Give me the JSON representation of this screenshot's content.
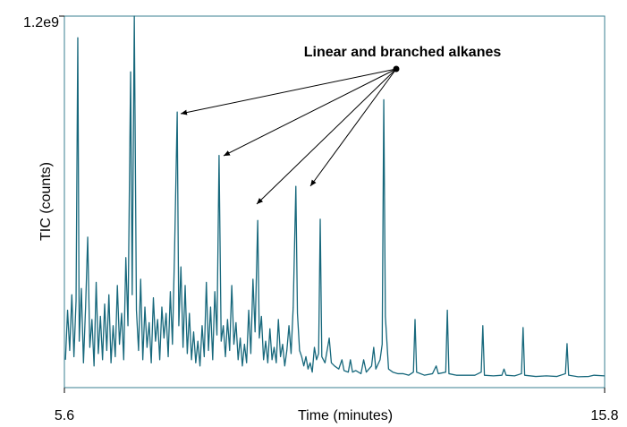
{
  "chart_data": {
    "type": "line",
    "xlabel": "Time (minutes)",
    "ylabel": "TIC (counts)",
    "annotation": "Linear and branched alkanes",
    "xlim": [
      5.6,
      15.8
    ],
    "xticks": [
      5.6,
      15.8
    ],
    "ylim": [
      0,
      1200000000.0
    ],
    "yticks": [
      {
        "value": 1200000000.0,
        "label": "1.2e9"
      }
    ],
    "color": "#17687c",
    "x": [
      5.62,
      5.66,
      5.7,
      5.74,
      5.78,
      5.82,
      5.853,
      5.88,
      5.92,
      5.96,
      6.0,
      6.04,
      6.08,
      6.12,
      6.16,
      6.2,
      6.24,
      6.28,
      6.32,
      6.36,
      6.4,
      6.44,
      6.48,
      6.52,
      6.56,
      6.6,
      6.64,
      6.68,
      6.72,
      6.76,
      6.8,
      6.85,
      6.88,
      6.92,
      6.96,
      7.0,
      7.04,
      7.08,
      7.12,
      7.16,
      7.2,
      7.24,
      7.28,
      7.32,
      7.36,
      7.4,
      7.44,
      7.48,
      7.52,
      7.56,
      7.6,
      7.64,
      7.68,
      7.73,
      7.76,
      7.8,
      7.84,
      7.88,
      7.92,
      7.96,
      8.0,
      8.04,
      8.08,
      8.12,
      8.16,
      8.2,
      8.24,
      8.28,
      8.32,
      8.36,
      8.4,
      8.44,
      8.48,
      8.52,
      8.56,
      8.6,
      8.64,
      8.68,
      8.72,
      8.76,
      8.8,
      8.84,
      8.88,
      8.92,
      8.96,
      9.0,
      9.04,
      9.08,
      9.12,
      9.16,
      9.2,
      9.25,
      9.28,
      9.32,
      9.36,
      9.4,
      9.44,
      9.48,
      9.52,
      9.56,
      9.6,
      9.64,
      9.68,
      9.72,
      9.76,
      9.8,
      9.84,
      9.88,
      9.92,
      9.97,
      10.0,
      10.04,
      10.08,
      10.12,
      10.16,
      10.2,
      10.24,
      10.28,
      10.32,
      10.36,
      10.4,
      10.43,
      10.46,
      10.52,
      10.6,
      10.64,
      10.7,
      10.78,
      10.84,
      10.88,
      10.96,
      11.0,
      11.04,
      11.1,
      11.2,
      11.25,
      11.3,
      11.4,
      11.44,
      11.48,
      11.56,
      11.6,
      11.63,
      11.66,
      11.72,
      11.8,
      11.9,
      12.0,
      12.1,
      12.19,
      12.22,
      12.25,
      12.4,
      12.55,
      12.62,
      12.66,
      12.8,
      12.83,
      12.86,
      13.0,
      13.2,
      13.35,
      13.47,
      13.5,
      13.53,
      13.7,
      13.86,
      13.9,
      13.94,
      14.1,
      14.23,
      14.26,
      14.29,
      14.5,
      14.7,
      14.9,
      15.06,
      15.09,
      15.12,
      15.3,
      15.5,
      15.6,
      15.8
    ],
    "values": [
      90000000.0,
      250000000.0,
      120000000.0,
      300000000.0,
      100000000.0,
      280000000.0,
      1130000000.0,
      150000000.0,
      320000000.0,
      80000000.0,
      260000000.0,
      486000000.0,
      130000000.0,
      220000000.0,
      70000000.0,
      340000000.0,
      110000000.0,
      230000000.0,
      90000000.0,
      270000000.0,
      120000000.0,
      300000000.0,
      80000000.0,
      200000000.0,
      100000000.0,
      330000000.0,
      140000000.0,
      240000000.0,
      90000000.0,
      420000000.0,
      200000000.0,
      1020000000.0,
      300000000.0,
      1200000000.0,
      250000000.0,
      120000000.0,
      350000000.0,
      90000000.0,
      260000000.0,
      130000000.0,
      210000000.0,
      80000000.0,
      290000000.0,
      150000000.0,
      220000000.0,
      90000000.0,
      260000000.0,
      160000000.0,
      240000000.0,
      100000000.0,
      310000000.0,
      140000000.0,
      440000000.0,
      890000000.0,
      200000000.0,
      390000000.0,
      130000000.0,
      330000000.0,
      110000000.0,
      240000000.0,
      90000000.0,
      180000000.0,
      80000000.0,
      150000000.0,
      70000000.0,
      200000000.0,
      100000000.0,
      340000000.0,
      120000000.0,
      260000000.0,
      90000000.0,
      310000000.0,
      170000000.0,
      750000000.0,
      150000000.0,
      200000000.0,
      100000000.0,
      220000000.0,
      120000000.0,
      330000000.0,
      140000000.0,
      210000000.0,
      90000000.0,
      160000000.0,
      70000000.0,
      140000000.0,
      80000000.0,
      250000000.0,
      110000000.0,
      350000000.0,
      180000000.0,
      540000000.0,
      160000000.0,
      230000000.0,
      90000000.0,
      150000000.0,
      80000000.0,
      190000000.0,
      90000000.0,
      130000000.0,
      80000000.0,
      220000000.0,
      100000000.0,
      140000000.0,
      70000000.0,
      120000000.0,
      200000000.0,
      110000000.0,
      260000000.0,
      650000000.0,
      240000000.0,
      120000000.0,
      100000000.0,
      70000000.0,
      100000000.0,
      60000000.0,
      80000000.0,
      50000000.0,
      130000000.0,
      90000000.0,
      110000000.0,
      544000000.0,
      100000000.0,
      80000000.0,
      160000000.0,
      80000000.0,
      70000000.0,
      60000000.0,
      90000000.0,
      55000000.0,
      50000000.0,
      90000000.0,
      50000000.0,
      55000000.0,
      45000000.0,
      90000000.0,
      50000000.0,
      70000000.0,
      130000000.0,
      60000000.0,
      90000000.0,
      140000000.0,
      930000000.0,
      230000000.0,
      60000000.0,
      50000000.0,
      45000000.0,
      45000000.0,
      40000000.0,
      50000000.0,
      220000000.0,
      50000000.0,
      40000000.0,
      45000000.0,
      70000000.0,
      45000000.0,
      50000000.0,
      250000000.0,
      45000000.0,
      40000000.0,
      40000000.0,
      40000000.0,
      50000000.0,
      200000000.0,
      40000000.0,
      38000000.0,
      40000000.0,
      60000000.0,
      40000000.0,
      38000000.0,
      45000000.0,
      194000000.0,
      40000000.0,
      36000000.0,
      38000000.0,
      36000000.0,
      45000000.0,
      142000000.0,
      40000000.0,
      35000000.0,
      36000000.0,
      40000000.0,
      38000000.0
    ]
  }
}
